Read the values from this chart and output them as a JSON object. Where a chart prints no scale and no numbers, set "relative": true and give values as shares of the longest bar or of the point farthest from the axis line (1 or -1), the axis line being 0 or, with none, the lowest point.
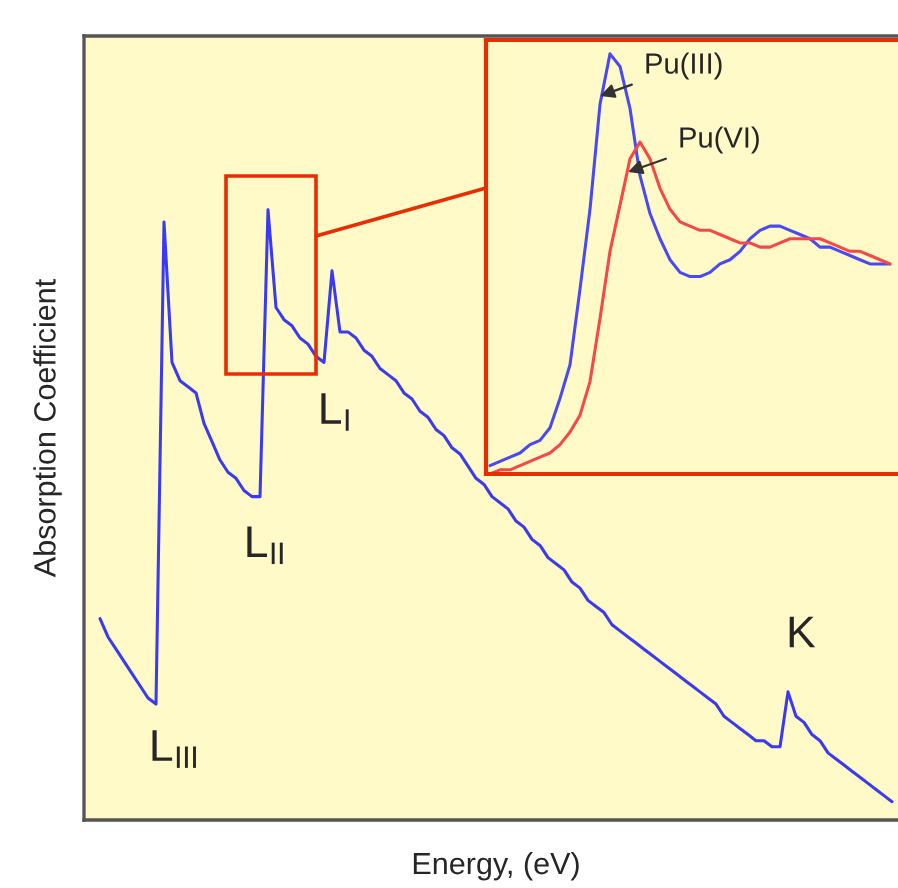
{
  "chart_data": [
    {
      "type": "line",
      "relative": true,
      "xlabel": "Energy, (eV)",
      "ylabel": "Absorption Coefficient",
      "grid": false,
      "legend": false,
      "categories": [
        null,
        null,
        null,
        null,
        null,
        null,
        null,
        null,
        null,
        null,
        null,
        null,
        null,
        null,
        null,
        null,
        null,
        null,
        null,
        null,
        null,
        null,
        null,
        null,
        null,
        null,
        null,
        null,
        null,
        null,
        null,
        null,
        null,
        null,
        null,
        null,
        null,
        null,
        null,
        null,
        null,
        null,
        null,
        null,
        null,
        null,
        null,
        null,
        null,
        null,
        null,
        null,
        null,
        null,
        null,
        null,
        null,
        null,
        null,
        null,
        null,
        null,
        null,
        null,
        null,
        null,
        null,
        null,
        null,
        null,
        null,
        null,
        null,
        null,
        null,
        null,
        null,
        null,
        null,
        null,
        null,
        null,
        null,
        null,
        null,
        null,
        null,
        null,
        null,
        null,
        null,
        null,
        null,
        null,
        null,
        null,
        null,
        null,
        null,
        null
      ],
      "series": [
        {
          "color": "#3a3af5",
          "values": [
            0.33,
            0.3,
            0.28,
            0.26,
            0.24,
            0.22,
            0.2,
            0.19,
            0.98,
            0.75,
            0.72,
            0.71,
            0.7,
            0.65,
            0.62,
            0.59,
            0.57,
            0.56,
            0.54,
            0.53,
            0.53,
            1.0,
            0.84,
            0.82,
            0.81,
            0.79,
            0.78,
            0.76,
            0.75,
            0.9,
            0.8,
            0.8,
            0.79,
            0.77,
            0.76,
            0.74,
            0.73,
            0.72,
            0.7,
            0.69,
            0.67,
            0.66,
            0.64,
            0.63,
            0.61,
            0.6,
            0.58,
            0.56,
            0.55,
            0.53,
            0.52,
            0.51,
            0.49,
            0.48,
            0.46,
            0.45,
            0.43,
            0.42,
            0.41,
            0.39,
            0.38,
            0.36,
            0.35,
            0.34,
            0.32,
            0.31,
            0.3,
            0.29,
            0.28,
            0.27,
            0.26,
            0.25,
            0.24,
            0.23,
            0.22,
            0.21,
            0.2,
            0.19,
            0.17,
            0.16,
            0.15,
            0.14,
            0.13,
            0.13,
            0.12,
            0.12,
            0.21,
            0.17,
            0.16,
            0.14,
            0.13,
            0.11,
            0.1,
            0.09,
            0.08,
            0.07,
            0.06,
            0.05,
            0.04,
            0.03
          ]
        }
      ],
      "annotations": [
        "L$_{III}$",
        "L$_{II}$",
        "L$_{I}$",
        "K"
      ]
    },
    {
      "type": "line",
      "relative": true,
      "grid": false,
      "legend": false,
      "categories": [
        null,
        null,
        null,
        null,
        null,
        null,
        null,
        null,
        null,
        null,
        null,
        null,
        null,
        null,
        null,
        null,
        null,
        null,
        null,
        null,
        null,
        null,
        null,
        null,
        null,
        null,
        null,
        null,
        null,
        null,
        null,
        null,
        null,
        null,
        null,
        null,
        null,
        null,
        null,
        null,
        null
      ],
      "series": [
        {
          "name": "Pu(III)",
          "color": "#4a4af5",
          "values": [
            0.02,
            0.03,
            0.04,
            0.05,
            0.07,
            0.08,
            0.11,
            0.18,
            0.26,
            0.44,
            0.63,
            0.88,
            1.0,
            0.97,
            0.87,
            0.71,
            0.62,
            0.56,
            0.51,
            0.48,
            0.47,
            0.47,
            0.48,
            0.5,
            0.51,
            0.53,
            0.56,
            0.58,
            0.59,
            0.59,
            0.58,
            0.57,
            0.56,
            0.54,
            0.54,
            0.53,
            0.52,
            0.51,
            0.5,
            0.5,
            0.5
          ]
        },
        {
          "name": "Pu(VI)",
          "color": "#f54848",
          "values": [
            0.0,
            0.01,
            0.01,
            0.02,
            0.03,
            0.04,
            0.05,
            0.07,
            0.1,
            0.14,
            0.22,
            0.37,
            0.53,
            0.64,
            0.75,
            0.79,
            0.75,
            0.68,
            0.63,
            0.6,
            0.59,
            0.58,
            0.58,
            0.57,
            0.56,
            0.55,
            0.55,
            0.54,
            0.54,
            0.55,
            0.56,
            0.56,
            0.56,
            0.56,
            0.55,
            0.54,
            0.53,
            0.53,
            0.52,
            0.51,
            0.5
          ]
        }
      ]
    }
  ]
}
